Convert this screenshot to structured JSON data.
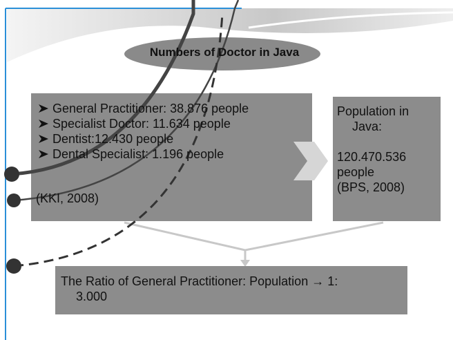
{
  "slide": {
    "title": "Numbers of Doctor in Java",
    "doctors": {
      "items": [
        "General Practitioner: 38.876 people",
        "Specialist Doctor: 11.634 people",
        "Dentist:12.430 people",
        "Dental Specialist: 1.196 people"
      ],
      "source": "(KKI, 2008)"
    },
    "population": {
      "lines": [
        "Population in",
        "Java:",
        "120.470.536",
        "people",
        "(BPS, 2008)"
      ]
    },
    "ratio": {
      "lines": [
        "The Ratio of General Practitioner: Population → 1:",
        "3.000"
      ]
    }
  }
}
